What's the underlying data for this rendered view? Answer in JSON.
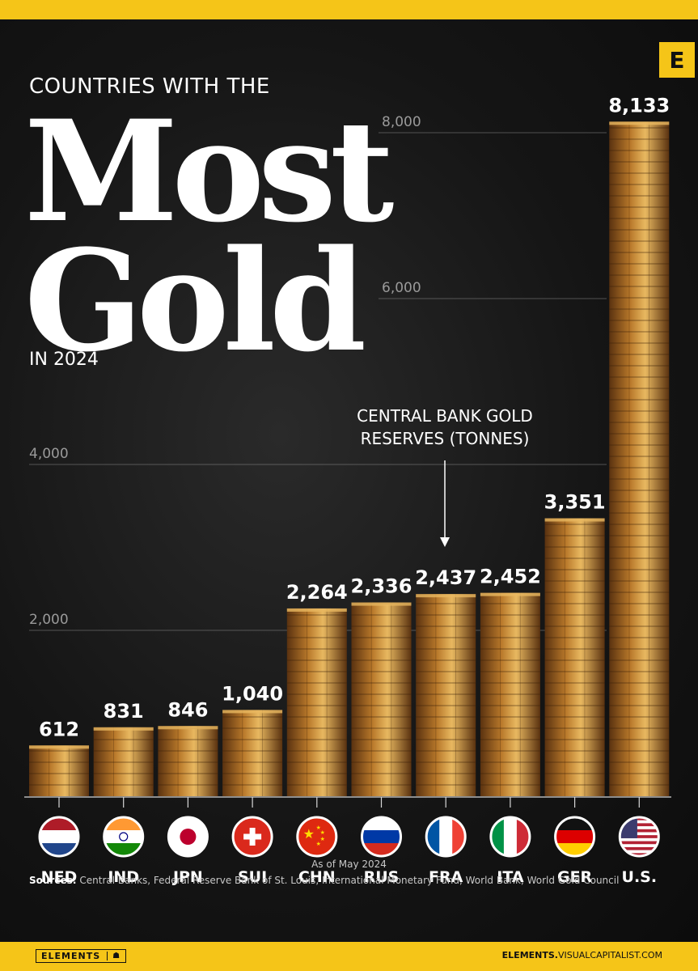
{
  "badge": "E",
  "title": {
    "top": "COUNTRIES WITH THE",
    "most": "Most",
    "gold": "Gold",
    "sub": "IN 2024"
  },
  "annotation": "CENTRAL BANK GOLD RESERVES (TONNES)",
  "as_of": "As of May 2024",
  "sources_label": "Sources:",
  "sources_text": "Central Banks, Federal Reserve Bank of St. Louis, International Monetary Fund, World Bank, World Gold Council",
  "footer": {
    "left": "ELEMENTS",
    "left_mark": "☗",
    "right_bold": "ELEMENTS.",
    "right_rest": "VISUALCAPITALIST.COM"
  },
  "colors": {
    "gold": "#b8782a",
    "goldLight": "#e8b860",
    "goldDark": "#5a3210",
    "brand": "#f5c518"
  },
  "chart_data": {
    "type": "bar",
    "title": "Countries with the Most Gold in 2024",
    "ylabel": "Central Bank Gold Reserves (Tonnes)",
    "ylim": [
      0,
      8133
    ],
    "yticks": [
      "2,000",
      "4,000",
      "6,000",
      "8,000"
    ],
    "ytick_values": [
      2000,
      4000,
      6000,
      8000
    ],
    "categories": [
      "NED",
      "IND",
      "JPN",
      "SUI",
      "CHN",
      "RUS",
      "FRA",
      "ITA",
      "GER",
      "U.S."
    ],
    "values": [
      612,
      831,
      846,
      1040,
      2264,
      2336,
      2437,
      2452,
      3351,
      8133
    ],
    "value_labels": [
      "612",
      "831",
      "846",
      "1,040",
      "2,264",
      "2,336",
      "2,437",
      "2,452",
      "3,351",
      "8,133"
    ],
    "flags": [
      "netherlands-flag",
      "india-flag",
      "japan-flag",
      "switzerland-flag",
      "china-flag",
      "russia-flag",
      "france-flag",
      "italy-flag",
      "germany-flag",
      "usa-flag"
    ],
    "grid": true
  }
}
